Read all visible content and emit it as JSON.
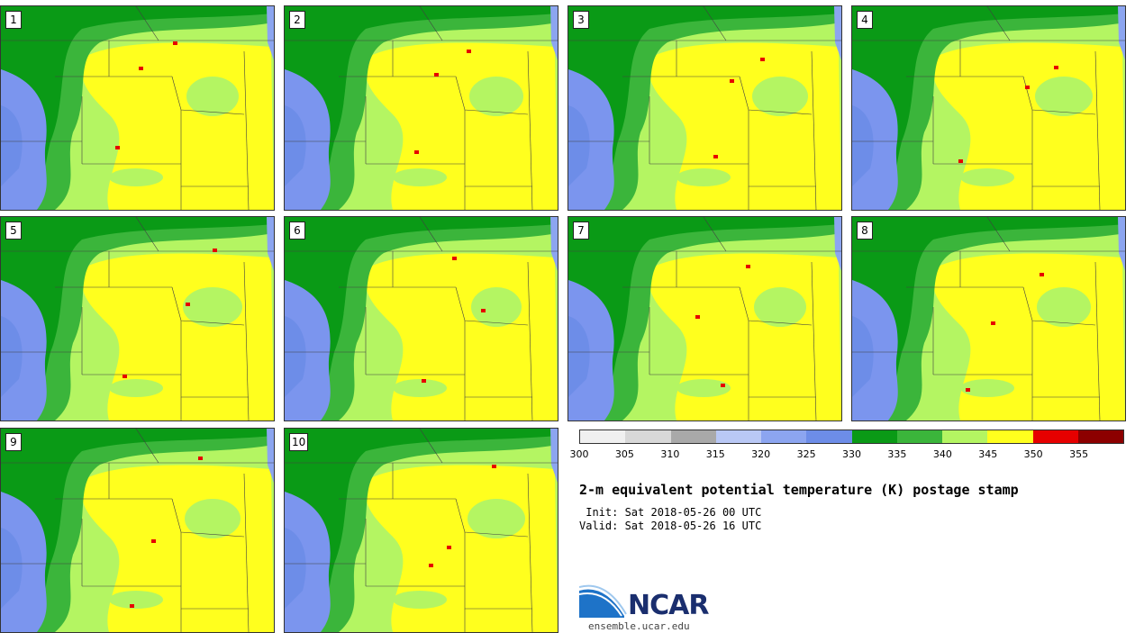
{
  "panels": [
    "1",
    "2",
    "3",
    "4",
    "5",
    "6",
    "7",
    "8",
    "9",
    "10"
  ],
  "colorbar": {
    "colors": [
      "#f0f0f0",
      "#d8d8d8",
      "#a9a9a9",
      "#b9c8f5",
      "#8ca5f0",
      "#6d8de8",
      "#0a9a16",
      "#3bb53b",
      "#b4f562",
      "#ffff1e",
      "#e60000",
      "#8c0000"
    ],
    "ticks": [
      "300",
      "305",
      "310",
      "315",
      "320",
      "325",
      "330",
      "335",
      "340",
      "345",
      "350",
      "355"
    ]
  },
  "title": "2-m equivalent potential temperature (K) postage stamp",
  "init": " Init: Sat 2018-05-26 00 UTC",
  "valid": "Valid: Sat 2018-05-26 16 UTC",
  "logo": {
    "text": "NCAR",
    "url": "ensemble.ucar.edu"
  }
}
